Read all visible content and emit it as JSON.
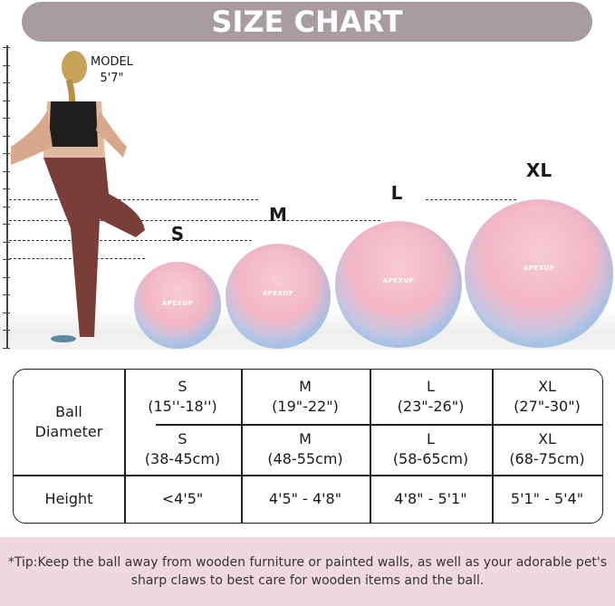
{
  "title": "SIZE CHART",
  "model": {
    "label": "MODEL",
    "height": "5'7\""
  },
  "brand": "APEXUP",
  "balls": [
    {
      "size": "S"
    },
    {
      "size": "M"
    },
    {
      "size": "L"
    },
    {
      "size": "XL"
    }
  ],
  "colors": {
    "title_bg": "#a89c9e",
    "tip_bg": "#f0d9de",
    "ball_pink": "#f3b6c6",
    "ball_blue": "#9ed4ee"
  },
  "table": {
    "row_headers": {
      "diameter": "Ball Diameter",
      "height": "Height"
    },
    "inch": [
      {
        "size": "S",
        "range": "(15''-18'')"
      },
      {
        "size": "M",
        "range": "(19\"-22\")"
      },
      {
        "size": "L",
        "range": "(23\"-26\")"
      },
      {
        "size": "XL",
        "range": "(27\"-30\")"
      }
    ],
    "cm": [
      {
        "size": "S",
        "range": "(38-45cm)"
      },
      {
        "size": "M",
        "range": "(48-55cm)"
      },
      {
        "size": "L",
        "range": "(58-65cm)"
      },
      {
        "size": "XL",
        "range": "(68-75cm)"
      }
    ],
    "height": [
      "<4'5\"",
      "4'5\" - 4'8\"",
      "4'8\" - 5'1\"",
      "5'1\" - 5'4\""
    ]
  },
  "tip": "*Tip:Keep the ball away from wooden furniture or painted walls, as well as your adorable pet's sharp claws to best care for wooden items and the ball."
}
